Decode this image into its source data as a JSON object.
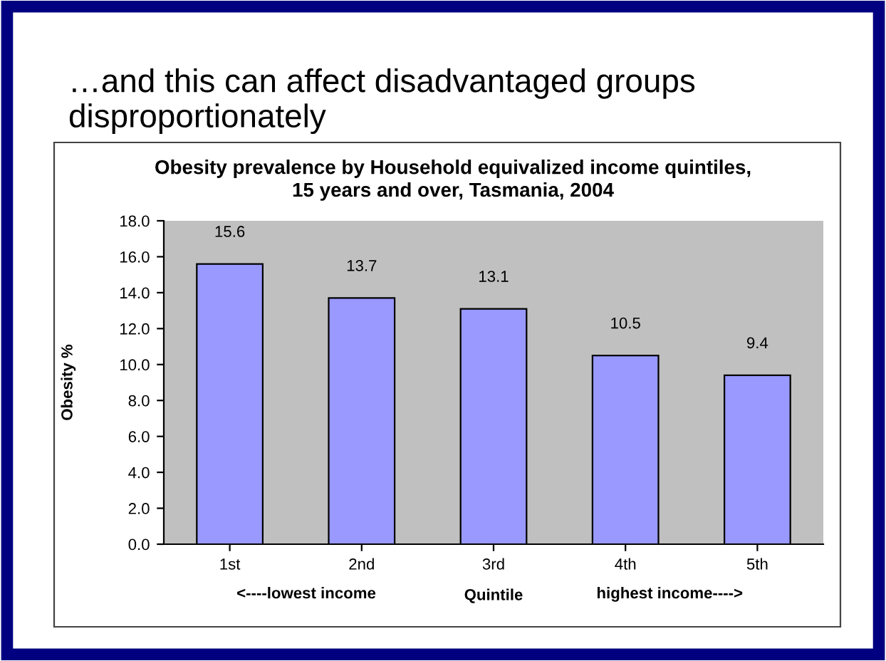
{
  "chart_data": {
    "type": "bar",
    "title": "…and this can affect disadvantaged groups disproportionately",
    "subtitle": "Obesity prevalence by Household equivalized income quintiles,\n15 years and over, Tasmania, 2004",
    "categories": [
      "1st",
      "2nd",
      "3rd",
      "4th",
      "5th"
    ],
    "values": [
      15.6,
      13.7,
      13.1,
      10.5,
      9.4
    ],
    "color": "#9999ff",
    "ylabel": "Obesity %",
    "xlabel": "Quintile",
    "annotations": [
      "<----lowest income",
      "highest income---->"
    ],
    "ylim": [
      0,
      18
    ],
    "yticks": [
      {
        "value": 0,
        "label": "0.0"
      },
      {
        "value": 2,
        "label": "2.0"
      },
      {
        "value": 4,
        "label": "4.0"
      },
      {
        "value": 6,
        "label": "6.0"
      },
      {
        "value": 8,
        "label": "8.0"
      },
      {
        "value": 10,
        "label": "10.0"
      },
      {
        "value": 12,
        "label": "12.0"
      },
      {
        "value": 14,
        "label": "14.0"
      },
      {
        "value": 16,
        "label": "16.0"
      },
      {
        "value": 18,
        "label": "18.0"
      }
    ],
    "data_labels": true,
    "grid": false,
    "legend": false
  }
}
